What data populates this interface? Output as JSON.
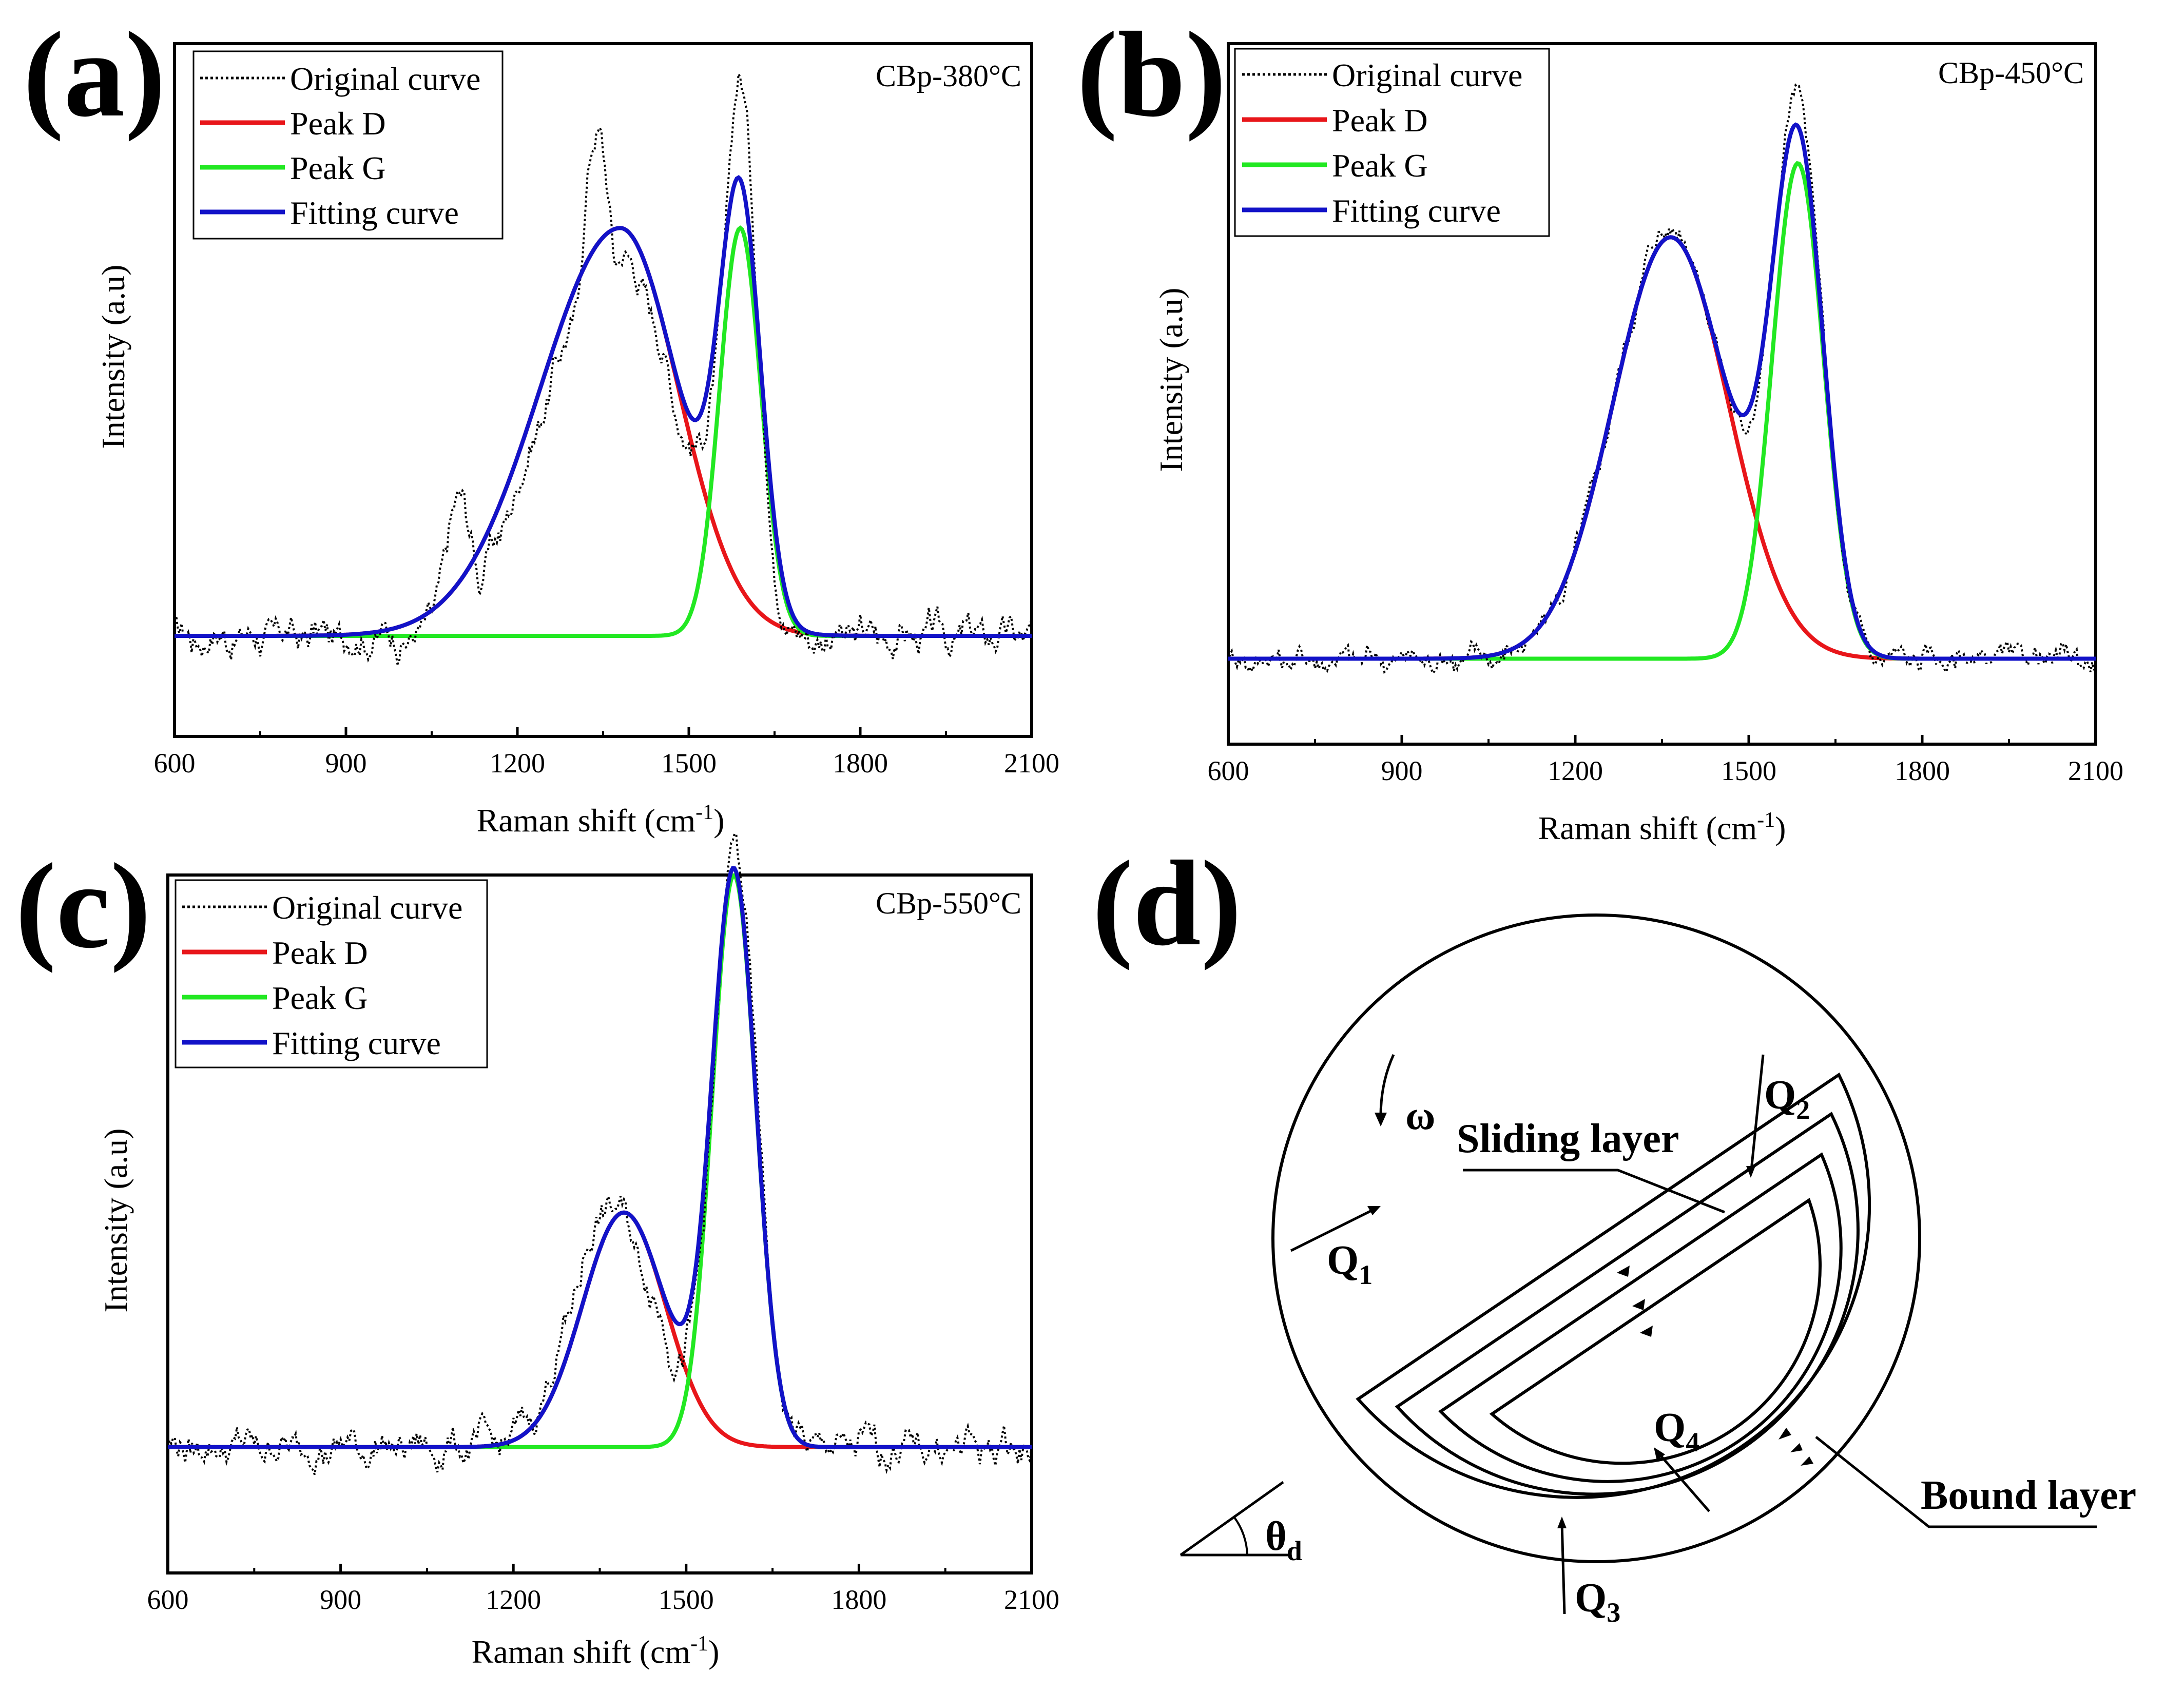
{
  "chart_data": [
    {
      "type": "line",
      "panel": "(a)",
      "sample": "CBp-380°C",
      "xlabel": "Raman shift (cm",
      "xlabel_sup": "-1",
      "xlabel_end": ")",
      "ylabel": "Intensity (a.u)",
      "xlim": [
        600,
        2100
      ],
      "ylim": [
        -0.18,
        1.06
      ],
      "xticks": [
        600,
        900,
        1200,
        1500,
        1800,
        2100
      ],
      "legend": [
        "Original curve",
        "Peak D",
        "Peak G",
        "Fitting curve"
      ],
      "peaks": {
        "D": {
          "center": 1380,
          "amplitude": 0.73,
          "fwhm_left": 330,
          "fwhm_right": 240
        },
        "G": {
          "center": 1590,
          "amplitude": 0.73,
          "fwhm": 85
        }
      },
      "original_peaks": [
        {
          "center": 1340,
          "amplitude": 0.9,
          "fwhm": 90
        },
        {
          "center": 1590,
          "amplitude": 1.0,
          "fwhm": 70
        },
        {
          "center": 1100,
          "amplitude": 0.24,
          "fwhm": 60
        }
      ],
      "baseline": 0,
      "noise": 0.03
    },
    {
      "type": "line",
      "panel": "(b)",
      "sample": "CBp-450°C",
      "xlabel": "Raman shift (cm",
      "xlabel_sup": "-1",
      "xlabel_end": ")",
      "ylabel": "Intensity (a.u)",
      "xlim": [
        600,
        2100
      ],
      "ylim": [
        -0.15,
        1.08
      ],
      "xticks": [
        600,
        900,
        1200,
        1500,
        1800,
        2100
      ],
      "legend": [
        "Original curve",
        "Peak D",
        "Peak G",
        "Fitting curve"
      ],
      "peaks": {
        "D": {
          "center": 1365,
          "amplitude": 0.74,
          "fwhm": 235
        },
        "G": {
          "center": 1585,
          "amplitude": 0.87,
          "fwhm": 105
        }
      },
      "original_peaks": [
        {
          "center": 1365,
          "amplitude": 0.76,
          "fwhm": 230
        },
        {
          "center": 1585,
          "amplitude": 0.93,
          "fwhm": 100
        }
      ],
      "baseline": 0,
      "noise": 0.02
    },
    {
      "type": "line",
      "panel": "(c)",
      "sample": "CBp-550°C",
      "xlabel": "Raman shift (cm",
      "xlabel_sup": "-1",
      "xlabel_end": ")",
      "ylabel": "Intensity (a.u)",
      "xlim": [
        600,
        2100
      ],
      "ylim": [
        -0.22,
        1.0
      ],
      "xticks": [
        600,
        900,
        1200,
        1500,
        1800,
        2100
      ],
      "legend": [
        "Original curve",
        "Peak D",
        "Peak G",
        "Fitting curve"
      ],
      "peaks": {
        "D": {
          "center": 1392,
          "amplitude": 0.41,
          "fwhm": 170
        },
        "G": {
          "center": 1583,
          "amplitude": 1.0,
          "fwhm": 90
        }
      },
      "original_peaks": [
        {
          "center": 1370,
          "amplitude": 0.42,
          "fwhm": 160
        },
        {
          "center": 1585,
          "amplitude": 1.04,
          "fwhm": 88
        }
      ],
      "baseline": 0,
      "noise": 0.03
    }
  ],
  "labels": {
    "panel_a": "(a)",
    "panel_b": "(b)",
    "panel_c": "(c)",
    "panel_d": "(d)"
  },
  "diagram": {
    "omega": "ω",
    "sliding_layer": "Sliding layer",
    "bound_layer": "Bound layer",
    "q": "Q",
    "q1_sub": "1",
    "q2_sub": "2",
    "q3_sub": "3",
    "q4_sub": "4",
    "theta": "θ",
    "theta_sub": "d"
  },
  "colors": {
    "original": "#000000",
    "peak_d": "#e8161a",
    "peak_g": "#22e822",
    "fitting": "#1212c8"
  }
}
